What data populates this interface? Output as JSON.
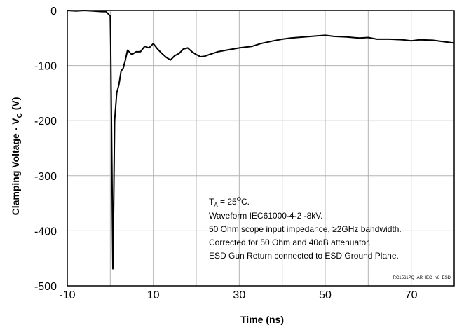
{
  "chart_data": {
    "type": "line",
    "xlabel": "Time (ns)",
    "ylabel_main": "Clamping Voltage - V",
    "ylabel_sub": "C",
    "ylabel_unit": " (V)",
    "xlim": [
      -10,
      80
    ],
    "ylim": [
      -500,
      0
    ],
    "xticks": [
      -10,
      10,
      30,
      50,
      70
    ],
    "xgrid": [
      0,
      10,
      20,
      30,
      40,
      50,
      60,
      70
    ],
    "yticks": [
      0,
      -100,
      -200,
      -300,
      -400,
      -500
    ],
    "grid": true,
    "series": [
      {
        "x": [
          -10,
          -8,
          -6,
          -4,
          -2,
          -1,
          0,
          0.1,
          0.2,
          0.4,
          0.6,
          0.8,
          1.0,
          1.5,
          2.0,
          2.5,
          3.0,
          3.5,
          4.0,
          5.0,
          6.0,
          7.0,
          8.0,
          9.0,
          10.0,
          11.0,
          12.0,
          13.0,
          14.0,
          15.0,
          16.0,
          17.0,
          18.0,
          19.0,
          20.0,
          21.0,
          22.0,
          23.0,
          25.0,
          27.0,
          30.0,
          33.0,
          35.0,
          38.0,
          40.0,
          42.0,
          45.0,
          48.0,
          50.0,
          52.0,
          55.0,
          58.0,
          60.0,
          62.0,
          65.0,
          68.0,
          70.0,
          72.0,
          75.0,
          78.0,
          80.0
        ],
        "y": [
          0,
          -1,
          0,
          -1,
          -2,
          -2,
          -10,
          -60,
          -150,
          -300,
          -469,
          -350,
          -200,
          -150,
          -135,
          -110,
          -105,
          -90,
          -72,
          -80,
          -75,
          -75,
          -65,
          -68,
          -60,
          -70,
          -78,
          -85,
          -90,
          -82,
          -78,
          -70,
          -68,
          -75,
          -80,
          -84,
          -83,
          -80,
          -75,
          -72,
          -68,
          -65,
          -60,
          -55,
          -52,
          -50,
          -48,
          -46,
          -45,
          -47,
          -48,
          -50,
          -49,
          -52,
          -52,
          -53,
          -55,
          -53,
          -54,
          -57,
          -59
        ]
      }
    ],
    "annotation": {
      "ta_prefix": "T",
      "ta_sub": "A",
      "ta_mid": " = 25",
      "ta_sup": "O",
      "ta_suffix": "C.",
      "lines": [
        "Waveform IEC61000-4-2 -8kV.",
        "50 Ohm scope input impedance, ≥2GHz bandwidth.",
        "Corrected for 50 Ohm and 40dB attenuator.",
        "ESD Gun Return connected to ESD Ground Plane."
      ]
    },
    "figure_id": "RC1561PQ_AR_IEC_N8_ESD"
  }
}
